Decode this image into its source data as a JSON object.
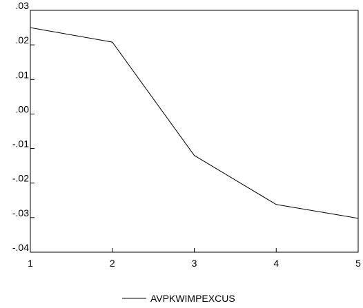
{
  "chart_data": {
    "type": "line",
    "x": [
      1,
      2,
      3,
      4,
      5
    ],
    "series": [
      {
        "name": "AVPKWIMPEXCUS",
        "values": [
          0.025,
          0.0208,
          -0.012,
          -0.0262,
          -0.0302
        ]
      }
    ],
    "xlim": [
      1,
      5
    ],
    "ylim": [
      -0.04,
      0.03
    ],
    "x_ticks": [
      1,
      2,
      3,
      4,
      5
    ],
    "x_tick_labels": [
      "1",
      "2",
      "3",
      "4",
      "5"
    ],
    "y_ticks": [
      0.03,
      0.02,
      0.01,
      0.0,
      -0.01,
      -0.02,
      -0.03,
      -0.04
    ],
    "y_tick_labels": [
      ".03",
      ".02",
      ".01",
      ".00",
      "-.01",
      "-.02",
      "-.03",
      "-.04"
    ],
    "grid": false,
    "legend_position": "bottom-center",
    "line_color": "#000000"
  }
}
